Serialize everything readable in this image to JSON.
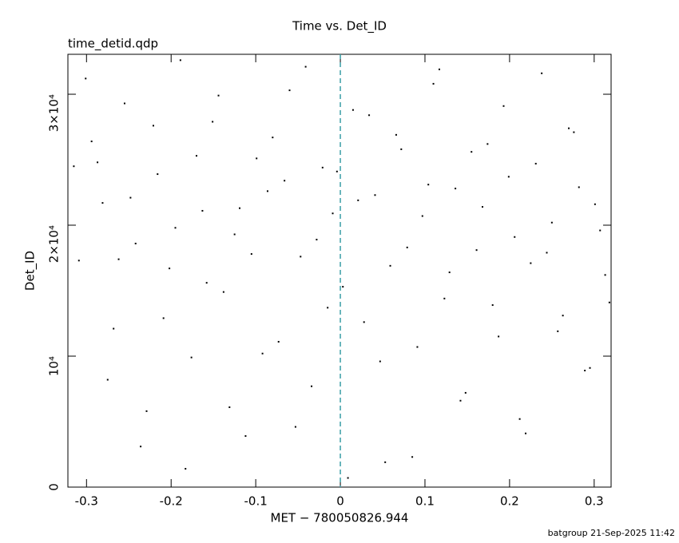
{
  "chart_data": {
    "type": "scatter",
    "title": "Time vs. Det_ID",
    "subtitle": "time_detid.qdp",
    "xlabel": "MET − 780050826.944",
    "ylabel": "Det_ID",
    "footer": "batgroup 21-Sep-2025 11:42",
    "color": "#000000",
    "vline": {
      "value": 0,
      "color": "#3a9fa6"
    },
    "xlim": [
      -0.322,
      0.32
    ],
    "ylim": [
      0,
      33050
    ],
    "xticks": [
      -0.3,
      -0.2,
      -0.1,
      0,
      0.1,
      0.2,
      0.3
    ],
    "yticks": [
      0,
      {
        "value": 10000,
        "label": "10⁴"
      },
      {
        "value": 20000,
        "label": "2×10⁴"
      },
      {
        "value": 30000,
        "label": "3×10⁴"
      }
    ],
    "x": [
      -0.301,
      -0.287,
      -0.275,
      -0.262,
      -0.248,
      -0.236,
      -0.221,
      -0.209,
      -0.195,
      -0.183,
      -0.17,
      -0.158,
      -0.144,
      -0.131,
      -0.119,
      -0.105,
      -0.092,
      -0.08,
      -0.066,
      -0.053,
      -0.041,
      -0.028,
      -0.015,
      -0.004,
      0.009,
      0.021,
      0.034,
      0.047,
      0.059,
      0.072,
      0.085,
      0.097,
      0.11,
      0.123,
      0.136,
      0.148,
      0.161,
      0.174,
      0.187,
      0.199,
      0.212,
      0.225,
      0.238,
      0.25,
      0.263,
      0.276,
      0.289,
      0.301,
      0.313,
      -0.315,
      -0.309,
      -0.294,
      -0.281,
      -0.268,
      -0.255,
      -0.242,
      -0.229,
      -0.216,
      -0.202,
      -0.189,
      -0.176,
      -0.163,
      -0.151,
      -0.138,
      -0.125,
      -0.112,
      -0.099,
      -0.086,
      -0.073,
      -0.06,
      -0.047,
      -0.034,
      -0.021,
      -0.009,
      0.003,
      0.015,
      0.028,
      0.041,
      0.053,
      0.066,
      0.079,
      0.091,
      0.104,
      0.117,
      0.129,
      0.142,
      0.155,
      0.168,
      0.18,
      0.193,
      0.206,
      0.219,
      0.231,
      0.244,
      0.257,
      0.27,
      0.282,
      0.295,
      0.307,
      0.318
    ],
    "values": [
      31200,
      24800,
      8200,
      17400,
      22100,
      3100,
      27600,
      12900,
      19800,
      1400,
      25300,
      15600,
      29900,
      6100,
      21300,
      17800,
      10200,
      26700,
      23400,
      4600,
      32100,
      18900,
      13700,
      24100,
      700,
      21900,
      28400,
      9600,
      16900,
      25800,
      2300,
      20700,
      30800,
      14400,
      22800,
      7200,
      18100,
      26200,
      11500,
      23700,
      5200,
      17100,
      31600,
      20200,
      13100,
      27100,
      8900,
      21600,
      16200,
      24500,
      17300,
      26400,
      21700,
      12100,
      29300,
      18600,
      5800,
      23900,
      16700,
      32600,
      9900,
      21100,
      27900,
      14900,
      19300,
      3900,
      25100,
      22600,
      11100,
      30300,
      17600,
      7700,
      24400,
      20900,
      15300,
      28800,
      12600,
      22300,
      1900,
      26900,
      18300,
      10700,
      23100,
      31900,
      16400,
      6600,
      25600,
      21400,
      13900,
      29100,
      19100,
      4100,
      24700,
      17900,
      11900,
      27400,
      22900,
      9100,
      19600,
      14100
    ]
  }
}
